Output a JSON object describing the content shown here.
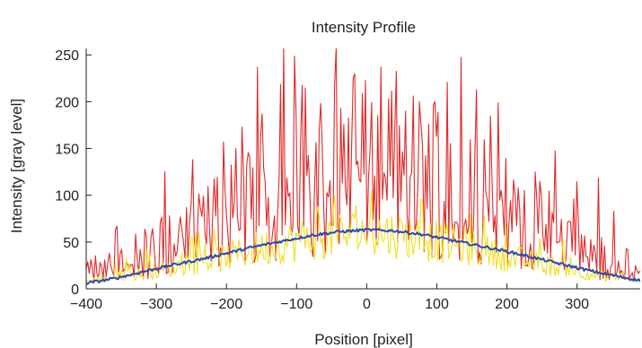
{
  "chart_data": {
    "type": "line",
    "title": "Intensity Profile",
    "xlabel": "Position [pixel]",
    "ylabel": "Intensity [gray level]",
    "xlim": [
      -400,
      390
    ],
    "ylim": [
      0,
      255
    ],
    "x_ticks": [
      -400,
      -300,
      -200,
      -100,
      0,
      100,
      200,
      300
    ],
    "y_ticks": [
      0,
      50,
      100,
      150,
      200,
      250
    ],
    "grid": false,
    "legend": "none",
    "series": [
      {
        "color": "#e02828",
        "style": "noisy",
        "x": [
          -400,
          -360,
          -320,
          -280,
          -240,
          -200,
          -160,
          -120,
          -80,
          -40,
          0,
          40,
          80,
          120,
          160,
          200,
          240,
          280,
          320,
          360,
          390
        ],
        "y": [
          20,
          28,
          40,
          55,
          70,
          85,
          105,
          120,
          135,
          145,
          150,
          145,
          135,
          120,
          105,
          88,
          72,
          55,
          40,
          28,
          22
        ]
      },
      {
        "color": "#f0e020",
        "style": "noisy",
        "x": [
          -400,
          -360,
          -320,
          -280,
          -240,
          -200,
          -160,
          -120,
          -80,
          -40,
          0,
          40,
          80,
          120,
          160,
          200,
          240,
          280,
          320,
          360,
          390
        ],
        "y": [
          8,
          12,
          16,
          22,
          28,
          34,
          42,
          48,
          54,
          58,
          60,
          58,
          54,
          48,
          42,
          34,
          28,
          22,
          16,
          12,
          8
        ]
      },
      {
        "color": "#2848c0",
        "style": "smooth",
        "x": [
          -400,
          -360,
          -320,
          -280,
          -240,
          -200,
          -160,
          -120,
          -80,
          -40,
          0,
          40,
          80,
          120,
          160,
          200,
          240,
          280,
          320,
          360,
          390
        ],
        "y": [
          6,
          11,
          18,
          25,
          31,
          38,
          45,
          51,
          57,
          61,
          63,
          62,
          58,
          52,
          46,
          40,
          33,
          26,
          19,
          13,
          9
        ]
      }
    ]
  }
}
